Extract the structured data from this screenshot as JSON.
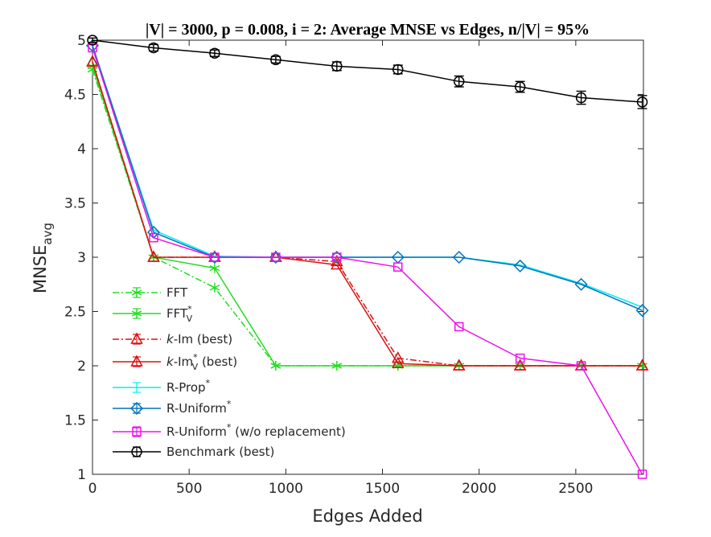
{
  "chart_data": {
    "type": "line",
    "title": "|V| = 3000, p = 0.008, i = 2: Average MNSE vs Edges, n/|V| = 95%",
    "xlabel": "Edges Added",
    "ylabel_main": "MNSE",
    "ylabel_sub": "avg",
    "xlim": [
      0,
      2850
    ],
    "ylim": [
      1,
      5
    ],
    "xticks": [
      0,
      500,
      1000,
      1500,
      2000,
      2500
    ],
    "yticks": [
      1,
      1.5,
      2,
      2.5,
      3,
      3.5,
      4,
      4.5,
      5
    ],
    "xtick_labels": [
      "0",
      "500",
      "1000",
      "1500",
      "2000",
      "2500"
    ],
    "ytick_labels": [
      "1",
      "1.5",
      "2",
      "2.5",
      "3",
      "3.5",
      "4",
      "4.5",
      "5"
    ],
    "grid": false,
    "legend_position": "lower-left",
    "series": [
      {
        "name": "FFT",
        "sup": "",
        "sub": "",
        "suffix": "",
        "color": "#22dd22",
        "dash": "dashdot",
        "marker": "asterisk",
        "x": [
          0,
          316,
          632,
          948,
          1264,
          1580,
          1896,
          2212,
          2528,
          2844
        ],
        "y": [
          4.73,
          3.0,
          2.72,
          2.0,
          2.0,
          2.0,
          2.0,
          2.0,
          2.0,
          2.0
        ]
      },
      {
        "name": "FFT",
        "sup": "*",
        "sub": "V",
        "suffix": "",
        "color": "#22dd22",
        "dash": "solid",
        "marker": "asterisk",
        "x": [
          0,
          316,
          632,
          948,
          1264,
          1580,
          1896,
          2212,
          2528,
          2844
        ],
        "y": [
          4.76,
          3.0,
          2.9,
          2.0,
          2.0,
          2.0,
          2.0,
          2.0,
          2.0,
          2.0
        ]
      },
      {
        "name": "k-Im (best)",
        "italic": "k",
        "rest": "-Im",
        "sup": "",
        "sub": "",
        "suffix": " (best)",
        "color": "#dd1111",
        "dash": "dashdot",
        "marker": "triangle",
        "x": [
          0,
          316,
          632,
          948,
          1264,
          1580,
          1896,
          2212,
          2528,
          2844
        ],
        "y": [
          4.8,
          3.0,
          3.0,
          3.0,
          2.96,
          2.07,
          2.0,
          2.0,
          2.0,
          2.0
        ]
      },
      {
        "name": "k-Im (best)",
        "italic": "k",
        "rest": "-Im",
        "sup": "*",
        "sub": "V",
        "suffix": " (best)",
        "color": "#dd1111",
        "dash": "solid",
        "marker": "triangle",
        "x": [
          0,
          316,
          632,
          948,
          1264,
          1580,
          1896,
          2212,
          2528,
          2844
        ],
        "y": [
          4.8,
          3.0,
          3.0,
          3.0,
          2.93,
          2.02,
          2.0,
          2.0,
          2.0,
          2.0
        ]
      },
      {
        "name": "R-Prop",
        "sup": "*",
        "sub": "",
        "suffix": "",
        "color": "#00eeee",
        "dash": "solid",
        "marker": "none",
        "x": [
          0,
          316,
          632,
          948,
          1264,
          1580,
          1896,
          2212,
          2528,
          2844
        ],
        "y": [
          4.95,
          3.25,
          3.01,
          3.0,
          3.0,
          3.0,
          3.0,
          2.93,
          2.76,
          2.54
        ]
      },
      {
        "name": "R-Uniform",
        "sup": "*",
        "sub": "",
        "suffix": "",
        "color": "#0072bd",
        "dash": "solid",
        "marker": "diamond",
        "x": [
          0,
          316,
          632,
          948,
          1264,
          1580,
          1896,
          2212,
          2528,
          2844
        ],
        "y": [
          4.95,
          3.23,
          3.0,
          3.0,
          3.0,
          3.0,
          3.0,
          2.92,
          2.75,
          2.51
        ]
      },
      {
        "name": "R-Uniform",
        "sup": "*",
        "sub": "",
        "suffix": " (w/o replacement)",
        "color": "#ee11ee",
        "dash": "solid",
        "marker": "square",
        "x": [
          0,
          316,
          632,
          948,
          1264,
          1580,
          1896,
          2212,
          2528,
          2844
        ],
        "y": [
          4.93,
          3.18,
          3.0,
          3.0,
          3.0,
          2.91,
          2.36,
          2.07,
          2.0,
          1.0
        ]
      },
      {
        "name": "Benchmark (best)",
        "sup": "",
        "sub": "",
        "suffix": "",
        "color": "#000000",
        "dash": "solid",
        "marker": "circle",
        "x": [
          0,
          316,
          632,
          948,
          1264,
          1580,
          1896,
          2212,
          2528,
          2844
        ],
        "y": [
          5.0,
          4.93,
          4.88,
          4.82,
          4.76,
          4.73,
          4.62,
          4.57,
          4.47,
          4.43
        ],
        "err": [
          0.02,
          0.03,
          0.03,
          0.03,
          0.04,
          0.04,
          0.05,
          0.05,
          0.06,
          0.06
        ]
      }
    ]
  }
}
